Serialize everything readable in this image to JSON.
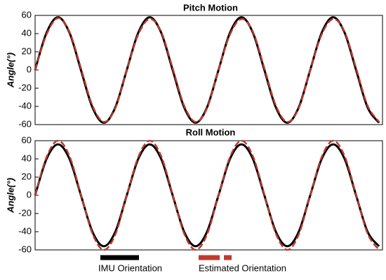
{
  "chart_data": [
    {
      "type": "line",
      "title": "Pitch Motion",
      "y_label": "Angle(°)",
      "x": [
        0,
        3.3,
        6.6,
        9.9,
        13.2,
        16.5,
        19.8,
        23.1,
        26.4,
        29.7,
        33,
        36.3,
        39.6,
        42.9,
        46.2,
        49.5,
        52.8,
        56.1,
        59.4,
        62.7,
        66,
        69.3,
        72.6,
        75.9,
        79.2,
        82.5,
        85.8,
        89.1,
        92.4,
        95.7,
        99
      ],
      "series": [
        {
          "color": "#000000",
          "values": [
            0,
            41,
            58,
            41,
            0,
            -41,
            -58,
            -41,
            0,
            41,
            58,
            41,
            0,
            -41,
            -58,
            -41,
            0,
            41,
            58,
            41,
            0,
            -41,
            -58,
            -41,
            0,
            41,
            58,
            41,
            0,
            -41,
            -58
          ]
        },
        {
          "color": "#c0392b",
          "values": [
            0,
            39,
            57,
            42,
            2,
            -39,
            -57,
            -42,
            0,
            39,
            56,
            42,
            2,
            -39,
            -57,
            -42,
            0,
            39,
            56,
            42,
            2,
            -39,
            -57,
            -42,
            0,
            39,
            56,
            42,
            2,
            -39,
            -57
          ]
        }
      ],
      "xlim": [
        0,
        100
      ],
      "ylim": [
        -60,
        60
      ],
      "yticks": [
        -60,
        -40,
        -20,
        0,
        20,
        40,
        60
      ]
    },
    {
      "type": "line",
      "title": "Roll Motion",
      "y_label": "Angle(°)",
      "x": [
        0,
        3.3,
        6.6,
        9.9,
        13.2,
        16.5,
        19.8,
        23.1,
        26.4,
        29.7,
        33,
        36.3,
        39.6,
        42.9,
        46.2,
        49.5,
        52.8,
        56.1,
        59.4,
        62.7,
        66,
        69.3,
        72.6,
        75.9,
        79.2,
        82.5,
        85.8,
        89.1,
        92.4,
        95.7,
        99
      ],
      "series": [
        {
          "name": "IMU Orientation",
          "color": "#000000",
          "values": [
            0,
            40,
            56,
            40,
            0,
            -40,
            -56,
            -40,
            0,
            40,
            56,
            40,
            0,
            -40,
            -56,
            -40,
            0,
            40,
            56,
            40,
            0,
            -40,
            -56,
            -40,
            0,
            40,
            56,
            40,
            0,
            -40,
            -56
          ]
        },
        {
          "name": "Estimated Orientation",
          "color": "#c0392b",
          "values": [
            0,
            42,
            60,
            43,
            1,
            -42,
            -60,
            -43,
            0,
            42,
            60,
            43,
            1,
            -42,
            -60,
            -43,
            0,
            42,
            60,
            43,
            1,
            -42,
            -60,
            -43,
            0,
            42,
            60,
            43,
            1,
            -42,
            -60
          ]
        }
      ],
      "xlim": [
        0,
        100
      ],
      "ylim": [
        -60,
        60
      ],
      "yticks": [
        -60,
        -40,
        -20,
        0,
        20,
        40,
        60
      ]
    }
  ]
}
